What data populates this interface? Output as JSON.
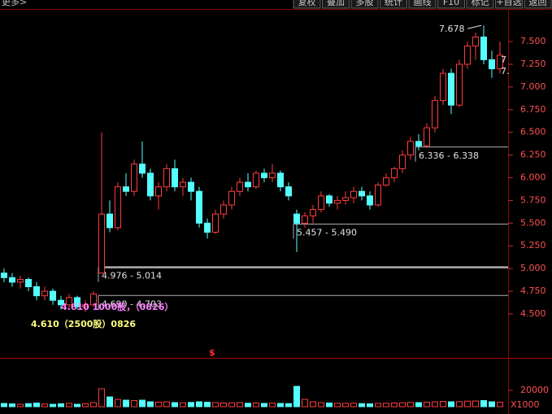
{
  "toolbar": {
    "left": "更多>",
    "buttons": [
      "复权",
      "叠加",
      "多股",
      "统计",
      "画线",
      "F10",
      "标记",
      "+自选",
      "返回"
    ]
  },
  "chart_data": {
    "type": "candlestick",
    "open": [
      4.95,
      4.9,
      4.85,
      4.88,
      4.8,
      4.7,
      4.75,
      4.65,
      4.6,
      4.68,
      4.58,
      4.6,
      4.95,
      5.6,
      5.45,
      5.9,
      5.85,
      6.15,
      6.05,
      5.8,
      5.9,
      6.1,
      5.9,
      5.95,
      5.85,
      5.5,
      5.4,
      5.6,
      5.7,
      5.85,
      5.95,
      5.9,
      6.05,
      6.0,
      6.05,
      5.9,
      5.6,
      5.5,
      5.58,
      5.65,
      5.8,
      5.72,
      5.75,
      5.78,
      5.85,
      5.8,
      5.7,
      5.92,
      6.0,
      6.1,
      6.25,
      6.4,
      6.35,
      6.55,
      6.85,
      7.15,
      6.8,
      7.25,
      7.45,
      7.55,
      7.3,
      7.2
    ],
    "high": [
      5.0,
      4.95,
      4.92,
      4.9,
      4.85,
      4.8,
      4.78,
      4.7,
      4.72,
      4.7,
      4.65,
      4.75,
      6.5,
      5.75,
      5.95,
      6.05,
      6.2,
      6.4,
      6.1,
      5.95,
      6.15,
      6.2,
      6.0,
      6.0,
      5.9,
      5.55,
      5.65,
      5.75,
      5.9,
      6.0,
      6.05,
      6.08,
      6.1,
      6.15,
      6.08,
      5.95,
      5.65,
      5.62,
      5.7,
      5.85,
      5.82,
      5.8,
      5.85,
      5.9,
      5.9,
      5.85,
      5.95,
      6.05,
      6.12,
      6.3,
      6.45,
      6.48,
      6.6,
      6.9,
      7.2,
      7.2,
      7.3,
      7.5,
      7.6,
      7.678,
      7.4,
      7.5
    ],
    "low": [
      4.85,
      4.8,
      4.78,
      4.75,
      4.65,
      4.65,
      4.6,
      4.55,
      4.55,
      4.55,
      4.52,
      4.58,
      4.95,
      5.4,
      5.42,
      5.8,
      5.8,
      6.0,
      5.75,
      5.65,
      5.85,
      5.85,
      5.8,
      5.75,
      5.45,
      5.33,
      5.38,
      5.55,
      5.65,
      5.8,
      5.85,
      5.88,
      5.95,
      5.95,
      5.85,
      5.75,
      5.18,
      5.45,
      5.5,
      5.62,
      5.68,
      5.65,
      5.7,
      5.72,
      5.75,
      5.65,
      5.68,
      5.9,
      5.95,
      6.05,
      6.2,
      6.3,
      6.34,
      6.5,
      6.8,
      6.7,
      6.78,
      7.2,
      7.3,
      7.25,
      7.1,
      7.15
    ],
    "close": [
      4.9,
      4.85,
      4.88,
      4.8,
      4.7,
      4.75,
      4.65,
      4.6,
      4.68,
      4.58,
      4.6,
      4.72,
      5.6,
      5.45,
      5.9,
      5.85,
      6.15,
      6.05,
      5.8,
      5.9,
      6.1,
      5.9,
      5.95,
      5.85,
      5.5,
      5.4,
      5.6,
      5.7,
      5.85,
      5.95,
      5.9,
      6.05,
      6.0,
      6.05,
      5.9,
      5.8,
      5.5,
      5.58,
      5.65,
      5.8,
      5.72,
      5.75,
      5.78,
      5.85,
      5.8,
      5.7,
      5.92,
      6.0,
      6.1,
      6.25,
      6.4,
      6.35,
      6.55,
      6.85,
      7.15,
      6.8,
      7.25,
      7.45,
      7.55,
      7.3,
      7.2,
      7.35
    ],
    "volume": [
      4000,
      3500,
      3000,
      3800,
      4500,
      3200,
      3000,
      3600,
      4200,
      3000,
      3500,
      5000,
      22000,
      12000,
      9000,
      8000,
      7500,
      8000,
      6000,
      5500,
      6000,
      5000,
      4800,
      5200,
      6000,
      5500,
      5000,
      4500,
      4800,
      5000,
      4200,
      4500,
      4000,
      4300,
      4000,
      3800,
      25000,
      9000,
      6000,
      5000,
      4500,
      4200,
      4000,
      4300,
      3800,
      3500,
      4000,
      4200,
      4500,
      4800,
      5200,
      5000,
      5500,
      6000,
      6500,
      6000,
      6200,
      6800,
      7000,
      7500,
      6000,
      5500
    ],
    "up_color": "#ff3c3c",
    "down_color": "#54ffff",
    "ylim": [
      4.016,
      7.85
    ],
    "yticks": [
      {
        "value": 4.5,
        "label": "4.500"
      },
      {
        "value": 4.75,
        "label": "4.750"
      },
      {
        "value": 5.0,
        "label": "5.000"
      },
      {
        "value": 5.25,
        "label": "5.250"
      },
      {
        "value": 5.5,
        "label": "5.500"
      },
      {
        "value": 5.75,
        "label": "5.750"
      },
      {
        "value": 6.0,
        "label": "6.000"
      },
      {
        "value": 6.25,
        "label": "6.250"
      },
      {
        "value": 6.5,
        "label": "6.500"
      },
      {
        "value": 6.75,
        "label": "6.750"
      },
      {
        "value": 7.0,
        "label": "7.000"
      },
      {
        "value": 7.25,
        "label": "7.250"
      },
      {
        "value": 7.5,
        "label": "7.500"
      }
    ],
    "vlim": [
      0,
      58000
    ],
    "vticks": [
      20000
    ],
    "volume_unit": "X1000",
    "levels": [
      {
        "value": 6.338,
        "label": "6.336 - 6.338",
        "start": 51
      },
      {
        "value": 5.49,
        "label": "5.457 - 5.490",
        "start": 36
      },
      {
        "value": 5.014,
        "label": "4.976 - 5.014",
        "start": 12
      },
      {
        "value": 4.703,
        "label": "4.690 - 4.703",
        "start": 12
      }
    ],
    "peak_label": "7.678",
    "notes": [
      "4.610 1000股，（0826）",
      "4.610（2500股）0826"
    ],
    "marker": "$",
    "edge_labels": [
      "7",
      "7."
    ]
  }
}
